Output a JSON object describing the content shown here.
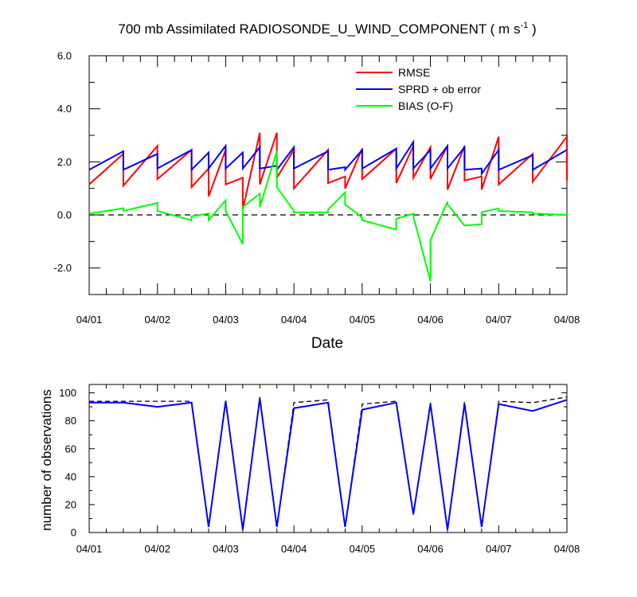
{
  "chart_data": [
    {
      "type": "line",
      "title": "700 mb Assimilated RADIOSONDE_U_WIND_COMPONENT ( m s",
      "title_superscript": "-1",
      "title_close": " )",
      "xlabel": "Date",
      "ylabel": "",
      "ylim": [
        -3,
        6
      ],
      "yticks": [
        -2.0,
        0.0,
        2.0,
        4.0,
        6.0
      ],
      "ytick_labels": [
        "-2.0",
        "0.0",
        "2.0",
        "4.0",
        "6.0"
      ],
      "xlim": [
        0,
        7
      ],
      "xticks": [
        0,
        1,
        2,
        3,
        4,
        5,
        6,
        7
      ],
      "xtick_labels": [
        "04/01",
        "04/02",
        "04/03",
        "04/04",
        "04/05",
        "04/06",
        "04/07",
        "04/08"
      ],
      "zero_line": true,
      "legend_position": "top-right",
      "series": [
        {
          "name": "RMSE",
          "color": "#ff0000",
          "x": [
            0,
            0.5,
            0.5,
            1,
            1,
            1.5,
            1.5,
            1.75,
            1.75,
            2,
            2,
            2.25,
            2.25,
            2.5,
            2.5,
            2.75,
            2.75,
            3,
            3,
            3.5,
            3.5,
            3.75,
            3.75,
            4,
            4,
            4.5,
            4.5,
            4.75,
            4.75,
            5,
            5,
            5.25,
            5.25,
            5.5,
            5.5,
            5.75,
            5.75,
            6,
            6,
            6.5,
            6.5,
            7,
            7
          ],
          "y": [
            1.15,
            2.3,
            1.1,
            2.6,
            1.35,
            2.45,
            1.05,
            1.75,
            0.7,
            2.45,
            1.15,
            1.4,
            0.2,
            3.1,
            1.15,
            3.1,
            1.4,
            2.45,
            1.0,
            2.45,
            1.2,
            1.45,
            1.0,
            2.5,
            1.35,
            2.5,
            1.2,
            2.6,
            1.4,
            2.55,
            1.35,
            2.6,
            0.95,
            2.6,
            1.3,
            1.45,
            0.95,
            2.95,
            1.15,
            2.3,
            1.25,
            2.95,
            1.3
          ]
        },
        {
          "name": "SPRD + ob error",
          "color": "#0000ff",
          "x": [
            0,
            0.5,
            0.5,
            1,
            1,
            1.5,
            1.5,
            1.75,
            1.75,
            2,
            2,
            2.25,
            2.25,
            2.5,
            2.5,
            2.75,
            2.75,
            3,
            3,
            3.5,
            3.5,
            3.75,
            3.75,
            4,
            4,
            4.5,
            4.5,
            4.75,
            4.75,
            5,
            5,
            5.25,
            5.25,
            5.5,
            5.5,
            5.75,
            5.75,
            6,
            6,
            6.5,
            6.5,
            7
          ],
          "y": [
            1.7,
            2.4,
            1.7,
            2.3,
            1.75,
            2.45,
            1.7,
            2.35,
            1.75,
            2.6,
            1.75,
            2.35,
            1.75,
            2.55,
            1.75,
            1.85,
            1.7,
            2.55,
            1.75,
            2.4,
            1.7,
            1.8,
            1.7,
            2.45,
            1.75,
            2.5,
            1.75,
            2.75,
            1.75,
            2.45,
            1.75,
            2.6,
            1.75,
            2.55,
            1.7,
            1.75,
            1.55,
            2.45,
            1.7,
            2.25,
            1.7,
            2.45
          ]
        },
        {
          "name": "BIAS (O-F)",
          "color": "#00ff00",
          "x": [
            0,
            0.5,
            0.5,
            1,
            1,
            1.5,
            1.5,
            1.75,
            1.75,
            2,
            2,
            2.25,
            2.25,
            2.5,
            2.5,
            2.75,
            2.75,
            3,
            3,
            3.5,
            3.5,
            3.75,
            3.75,
            4,
            4,
            4.5,
            4.5,
            4.75,
            4.75,
            5,
            5,
            5.25,
            5.25,
            5.5,
            5.5,
            5.75,
            5.75,
            6,
            6,
            6.5,
            6.5,
            7
          ],
          "y": [
            0.05,
            0.25,
            0.15,
            0.45,
            0.15,
            -0.2,
            -0.05,
            0.05,
            -0.2,
            0.55,
            0.15,
            -1.1,
            0.3,
            0.8,
            0.3,
            2.4,
            1.05,
            0.15,
            0.1,
            0.1,
            0.2,
            0.85,
            0.4,
            -0.1,
            -0.2,
            -0.55,
            -0.15,
            0.05,
            -0.05,
            -2.5,
            -0.95,
            0.5,
            0.4,
            -0.4,
            -0.4,
            -0.35,
            0.1,
            0.25,
            0.15,
            0.1,
            0.05,
            0.0
          ]
        }
      ]
    },
    {
      "type": "line",
      "title": "",
      "xlabel": "",
      "ylabel": "number of observations",
      "ylim": [
        0,
        106
      ],
      "yticks": [
        0,
        20,
        40,
        60,
        80,
        100
      ],
      "ytick_labels": [
        "0",
        "20",
        "40",
        "60",
        "80",
        "100"
      ],
      "xlim": [
        0,
        7
      ],
      "xticks": [
        0,
        1,
        2,
        3,
        4,
        5,
        6,
        7
      ],
      "xtick_labels": [
        "04/01",
        "04/02",
        "04/03",
        "04/04",
        "04/05",
        "04/06",
        "04/07",
        "04/08"
      ],
      "series": [
        {
          "style": "dashed",
          "color": "#000000",
          "x": [
            0,
            1,
            1.5,
            1.75,
            2,
            2.25,
            2.5,
            2.75,
            3,
            3.5,
            3.75,
            4,
            4.5,
            4.75,
            5,
            5.25,
            5.5,
            5.75,
            6,
            6.5,
            7
          ],
          "y": [
            94,
            94,
            94,
            4,
            95,
            2,
            97,
            4,
            93,
            95,
            4,
            92,
            94,
            13,
            93,
            2,
            94,
            4,
            94,
            93,
            97
          ]
        },
        {
          "style": "solid",
          "color": "#0000ff",
          "x": [
            0,
            0.5,
            1,
            1.5,
            1.75,
            2,
            2.25,
            2.5,
            2.75,
            3,
            3.5,
            3.75,
            4,
            4.5,
            4.75,
            5,
            5.25,
            5.5,
            5.75,
            6,
            6.5,
            7
          ],
          "y": [
            93,
            93,
            90,
            93,
            4,
            94,
            2,
            96,
            4,
            89,
            93,
            4,
            88,
            93,
            13,
            92,
            2,
            92,
            4,
            92,
            87,
            95
          ]
        }
      ]
    }
  ]
}
